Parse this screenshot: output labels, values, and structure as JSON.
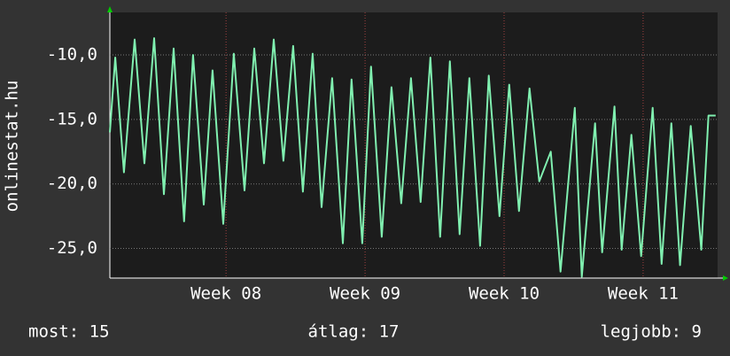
{
  "chart_data": {
    "type": "line",
    "y_label": "onlinestat.hu",
    "x": [
      0,
      0.27,
      0.71,
      1.25,
      1.74,
      2.23,
      2.72,
      3.21,
      3.74,
      4.19,
      4.73,
      5.17,
      5.71,
      6.24,
      6.78,
      7.27,
      7.76,
      8.25,
      8.74,
      9.23,
      9.72,
      10.21,
      10.66,
      11.19,
      11.73,
      12.17,
      12.71,
      13.15,
      13.69,
      14.18,
      14.67,
      15.16,
      15.65,
      16.14,
      16.63,
      17.12,
      17.61,
      18.1,
      18.64,
      19.08,
      19.62,
      20.11,
      20.6,
      21.13,
      21.62,
      22.2,
      22.69,
      23.41,
      23.76,
      24.43,
      24.79,
      25.41,
      25.77,
      26.26,
      26.75,
      27.33,
      27.78,
      28.27,
      28.71,
      29.25,
      29.78,
      30.14,
      30.5
    ],
    "values": [
      -16.0,
      -10.2,
      -19.1,
      -8.8,
      -18.4,
      -8.7,
      -20.8,
      -9.5,
      -22.9,
      -10.0,
      -21.6,
      -11.2,
      -23.1,
      -9.9,
      -20.5,
      -9.5,
      -18.4,
      -8.8,
      -18.2,
      -9.3,
      -20.6,
      -9.9,
      -21.8,
      -11.8,
      -24.6,
      -11.9,
      -24.6,
      -10.9,
      -24.1,
      -12.5,
      -21.5,
      -11.8,
      -21.4,
      -10.2,
      -24.1,
      -10.5,
      -23.9,
      -11.8,
      -24.8,
      -11.6,
      -22.5,
      -12.3,
      -22.1,
      -12.6,
      -19.8,
      -17.5,
      -26.8,
      -14.1,
      -27.2,
      -15.3,
      -25.3,
      -14.0,
      -25.1,
      -16.2,
      -25.6,
      -14.1,
      -26.2,
      -15.3,
      -26.3,
      -15.5,
      -25.1,
      -14.7,
      -14.7
    ],
    "color": "#80f0b0",
    "xlim": [
      0,
      30.6
    ],
    "xticks": [
      {
        "value": 5.85,
        "label": "Week 08"
      },
      {
        "value": 12.85,
        "label": "Week 09"
      },
      {
        "value": 19.85,
        "label": "Week 10"
      },
      {
        "value": 26.85,
        "label": "Week 11"
      }
    ],
    "ylim": [
      -27.3,
      -6.7
    ],
    "yticks": [
      {
        "value": -10,
        "label": "-10,0"
      },
      {
        "value": -15,
        "label": "-15,0"
      },
      {
        "value": -20,
        "label": "-20,0"
      },
      {
        "value": -25,
        "label": "-25,0"
      }
    ],
    "grid": true,
    "annotations": [
      "most: 15",
      "átlag: 17",
      "legjobb: 9"
    ]
  }
}
